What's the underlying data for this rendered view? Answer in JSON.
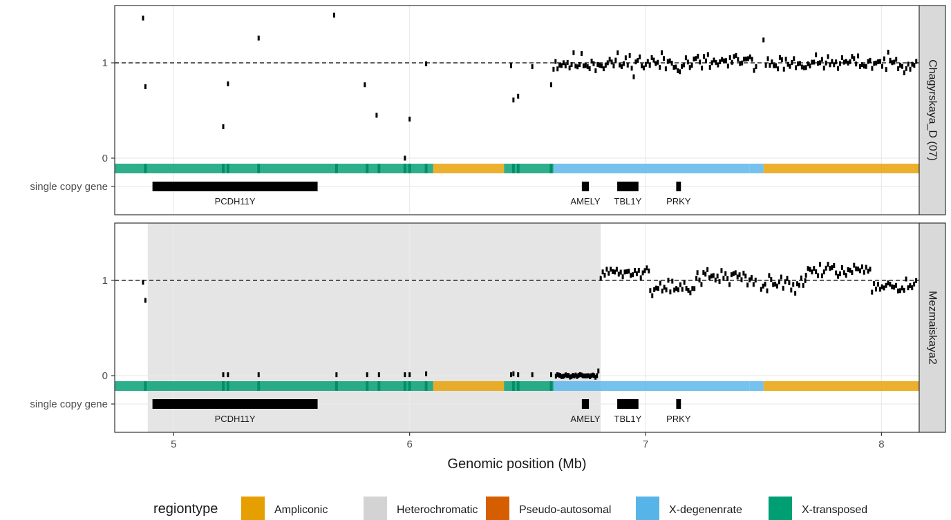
{
  "chart_data": {
    "type": "scatter",
    "xlabel": "Genomic position (Mb)",
    "xlim": [
      4.75,
      8.16
    ],
    "x_ticks": [
      "5",
      "6",
      "7",
      "8"
    ],
    "y_ticks": [
      "0",
      "1"
    ],
    "ylim": [
      -0.42,
      1.58
    ],
    "reference_line_y": 1,
    "gene_row_label": "single copy gene",
    "legend": {
      "title": "regiontype",
      "placement": "bottom",
      "entries": [
        {
          "label": "Ampliconic",
          "color": "#E69F00"
        },
        {
          "label": "Heterochromatic",
          "color": "#D3D3D3"
        },
        {
          "label": "Pseudo-autosomal",
          "color": "#D55E00"
        },
        {
          "label": "X-degenenrate",
          "color": "#56B4E9"
        },
        {
          "label": "X-transposed",
          "color": "#009E73"
        }
      ]
    },
    "regions": [
      {
        "start": 4.75,
        "end": 6.1,
        "type": "X-transposed"
      },
      {
        "start": 6.1,
        "end": 6.4,
        "type": "Ampliconic"
      },
      {
        "start": 6.4,
        "end": 6.61,
        "type": "X-transposed"
      },
      {
        "start": 6.61,
        "end": 7.44,
        "type": "X-degenenrate"
      },
      {
        "start": 7.44,
        "end": 7.5,
        "type": "X-degenenrate"
      },
      {
        "start": 7.5,
        "end": 8.16,
        "type": "Ampliconic"
      }
    ],
    "region_dark_marks": [
      4.88,
      5.21,
      5.23,
      5.36,
      5.69,
      5.82,
      5.87,
      5.98,
      6.0,
      6.07,
      6.44,
      6.46,
      6.6
    ],
    "genes": [
      {
        "name": "PCDH11Y",
        "start": 4.91,
        "end": 5.61
      },
      {
        "name": "AMELY",
        "start": 6.73,
        "end": 6.76
      },
      {
        "name": "TBL1Y",
        "start": 6.88,
        "end": 6.97
      },
      {
        "name": "PRKY",
        "start": 7.13,
        "end": 7.15
      }
    ],
    "panels": [
      {
        "name": "Chagyrskaya_D (07)",
        "heterochromatic": null,
        "sparse_points": [
          {
            "x": 4.87,
            "y": 1.47
          },
          {
            "x": 4.88,
            "y": 0.75
          },
          {
            "x": 5.21,
            "y": 0.33
          },
          {
            "x": 5.23,
            "y": 0.78
          },
          {
            "x": 5.36,
            "y": 1.26
          },
          {
            "x": 5.68,
            "y": 1.5
          },
          {
            "x": 5.81,
            "y": 0.77
          },
          {
            "x": 5.86,
            "y": 0.45
          },
          {
            "x": 5.98,
            "y": 0.0
          },
          {
            "x": 6.0,
            "y": 0.41
          },
          {
            "x": 6.07,
            "y": 0.99
          },
          {
            "x": 6.43,
            "y": 0.97
          },
          {
            "x": 6.44,
            "y": 0.61
          },
          {
            "x": 6.46,
            "y": 0.65
          },
          {
            "x": 6.52,
            "y": 0.96
          },
          {
            "x": 6.6,
            "y": 0.77
          },
          {
            "x": 7.5,
            "y": 1.24
          }
        ],
        "dense_segments": [
          {
            "from": 6.61,
            "to": 7.47,
            "step": 0.0085,
            "mean": 1.0,
            "spread": 0.16,
            "seed": 11
          },
          {
            "from": 7.51,
            "to": 8.15,
            "step": 0.0085,
            "mean": 1.0,
            "spread": 0.12,
            "seed": 23
          }
        ],
        "near_zero_segments": []
      },
      {
        "name": "Mezmaiskaya2",
        "heterochromatic": {
          "start": 4.89,
          "end": 6.81
        },
        "sparse_points": [
          {
            "x": 4.87,
            "y": 0.98
          },
          {
            "x": 4.88,
            "y": 0.79
          },
          {
            "x": 5.21,
            "y": 0.01
          },
          {
            "x": 5.23,
            "y": 0.01
          },
          {
            "x": 5.36,
            "y": 0.01
          },
          {
            "x": 5.69,
            "y": 0.01
          },
          {
            "x": 5.82,
            "y": 0.01
          },
          {
            "x": 5.87,
            "y": 0.01
          },
          {
            "x": 5.98,
            "y": 0.01
          },
          {
            "x": 6.0,
            "y": 0.01
          },
          {
            "x": 6.07,
            "y": 0.02
          },
          {
            "x": 6.43,
            "y": 0.01
          },
          {
            "x": 6.44,
            "y": 0.02
          },
          {
            "x": 6.46,
            "y": 0.01
          },
          {
            "x": 6.52,
            "y": 0.01
          },
          {
            "x": 6.6,
            "y": 0.01
          },
          {
            "x": 6.8,
            "y": 0.05
          }
        ],
        "dense_segments": [
          {
            "from": 6.81,
            "to": 7.02,
            "step": 0.0085,
            "mean": 1.08,
            "spread": 0.08,
            "seed": 31
          },
          {
            "from": 7.02,
            "to": 7.22,
            "step": 0.0085,
            "mean": 0.93,
            "spread": 0.12,
            "seed": 37
          },
          {
            "from": 7.22,
            "to": 7.47,
            "step": 0.0085,
            "mean": 1.03,
            "spread": 0.12,
            "seed": 41
          },
          {
            "from": 7.49,
            "to": 7.68,
            "step": 0.0085,
            "mean": 0.98,
            "spread": 0.14,
            "seed": 43
          },
          {
            "from": 7.68,
            "to": 7.96,
            "step": 0.0085,
            "mean": 1.1,
            "spread": 0.1,
            "seed": 47
          },
          {
            "from": 7.96,
            "to": 8.15,
            "step": 0.0085,
            "mean": 0.96,
            "spread": 0.12,
            "seed": 53
          }
        ],
        "near_zero_segments": [
          {
            "from": 6.62,
            "to": 6.8,
            "step": 0.006,
            "mean": 0.0,
            "spread": 0.02,
            "seed": 59
          }
        ]
      }
    ]
  },
  "ui": {
    "colors": {
      "panel_border": "#333333",
      "grid": "#EBEBEB",
      "strip_bg": "#D9D9D9",
      "point": "#000000",
      "gene": "#000000",
      "x_transposed_dark": "#008F68"
    }
  }
}
